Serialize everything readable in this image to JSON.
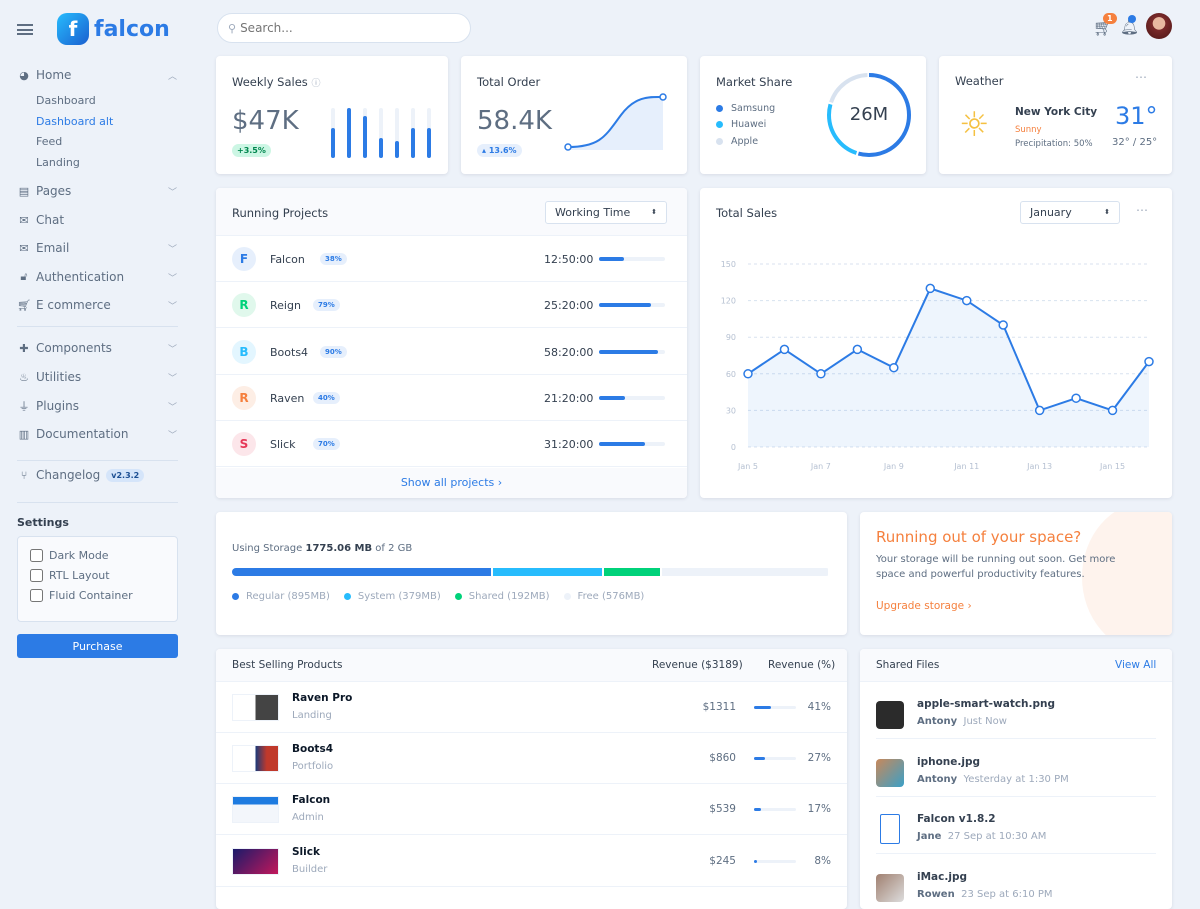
{
  "brand": {
    "name": "falcon"
  },
  "search": {
    "placeholder": "Search..."
  },
  "topbar": {
    "cart_count": "1"
  },
  "sidebar": {
    "home": "Home",
    "home_items": [
      "Dashboard",
      "Dashboard alt",
      "Feed",
      "Landing"
    ],
    "active_sub": "Dashboard alt",
    "items": [
      {
        "label": "Pages",
        "icon": "pages-icon"
      },
      {
        "label": "Chat",
        "icon": "chat-icon"
      },
      {
        "label": "Email",
        "icon": "email-icon"
      },
      {
        "label": "Authentication",
        "icon": "lock-icon"
      },
      {
        "label": "E commerce",
        "icon": "cart-icon"
      },
      {
        "label": "Components",
        "icon": "puzzle-icon"
      },
      {
        "label": "Utilities",
        "icon": "fire-icon"
      },
      {
        "label": "Plugins",
        "icon": "plug-icon"
      },
      {
        "label": "Documentation",
        "icon": "book-icon"
      }
    ],
    "changelog": "Changelog",
    "version": "v2.3.2",
    "settings_title": "Settings",
    "settings": [
      "Dark Mode",
      "RTL Layout",
      "Fluid Container"
    ],
    "purchase": "Purchase"
  },
  "weekly_sales": {
    "title": "Weekly Sales",
    "value": "$47K",
    "change": "+3.5%",
    "bars": [
      60,
      100,
      85,
      40,
      35,
      60,
      60
    ]
  },
  "total_order": {
    "title": "Total Order",
    "value": "58.4K",
    "change": "13.6%"
  },
  "market_share": {
    "title": "Market Share",
    "total": "26M",
    "legend": [
      {
        "name": "Samsung",
        "value": 55,
        "color": "#2c7be5"
      },
      {
        "name": "Huawei",
        "value": 25,
        "color": "#27bcfd"
      },
      {
        "name": "Apple",
        "value": 20,
        "color": "#d8e2ef"
      }
    ]
  },
  "weather": {
    "title": "Weather",
    "city": "New York City",
    "condition": "Sunny",
    "precipitation": "Precipitation: 50%",
    "temp": "31°",
    "range": "32° / 25°"
  },
  "running_projects": {
    "title": "Running Projects",
    "select": "Working Time",
    "footer": "Show all projects ›",
    "rows": [
      {
        "letter": "F",
        "name": "Falcon",
        "pct": "38%",
        "progress": 38,
        "time": "12:50:00",
        "color": "#2c7be5",
        "bg": "#e6effc"
      },
      {
        "letter": "R",
        "name": "Reign",
        "pct": "79%",
        "progress": 79,
        "time": "25:20:00",
        "color": "#00d27a",
        "bg": "#e0f8ec"
      },
      {
        "letter": "B",
        "name": "Boots4",
        "pct": "90%",
        "progress": 90,
        "time": "58:20:00",
        "color": "#27bcfd",
        "bg": "#e3f6ff"
      },
      {
        "letter": "R",
        "name": "Raven",
        "pct": "40%",
        "progress": 40,
        "time": "21:20:00",
        "color": "#f5803e",
        "bg": "#fdeee5"
      },
      {
        "letter": "S",
        "name": "Slick",
        "pct": "70%",
        "progress": 70,
        "time": "31:20:00",
        "color": "#e63757",
        "bg": "#fce6ea"
      }
    ]
  },
  "total_sales": {
    "title": "Total Sales",
    "select": "January"
  },
  "chart_data": {
    "type": "line",
    "title": "Total Sales",
    "x": [
      "Jan 5",
      "Jan 6",
      "Jan 7",
      "Jan 8",
      "Jan 9",
      "Jan 10",
      "Jan 11",
      "Jan 12",
      "Jan 13",
      "Jan 14",
      "Jan 15",
      "Jan 16"
    ],
    "xtick_labels": [
      "Jan 5",
      "Jan 7",
      "Jan 9",
      "Jan 11",
      "Jan 13",
      "Jan 15"
    ],
    "values": [
      60,
      80,
      60,
      80,
      65,
      130,
      120,
      100,
      30,
      40,
      30,
      70
    ],
    "ylim": [
      0,
      150
    ],
    "yticks": [
      0,
      30,
      60,
      90,
      120,
      150
    ],
    "grid": true
  },
  "storage": {
    "prefix": "Using Storage",
    "used": "1775.06 MB",
    "suffix": "of 2 GB",
    "segments": [
      {
        "label": "Regular (895MB)",
        "value": 895,
        "color": "#2c7be5"
      },
      {
        "label": "System (379MB)",
        "value": 379,
        "color": "#27bcfd"
      },
      {
        "label": "Shared (192MB)",
        "value": 192,
        "color": "#00d27a"
      },
      {
        "label": "Free (576MB)",
        "value": 576,
        "color": "#edf2f9"
      }
    ]
  },
  "space": {
    "title": "Running out of your space?",
    "text": "Your storage will be running out soon. Get more space and powerful productivity features.",
    "link": "Upgrade storage ›"
  },
  "best_selling": {
    "title": "Best Selling Products",
    "col1": "Revenue ($3189)",
    "col2": "Revenue (%)",
    "rows": [
      {
        "name": "Raven Pro",
        "cat": "Landing",
        "rev": "$1311",
        "pct": "41%",
        "p": 41
      },
      {
        "name": "Boots4",
        "cat": "Portfolio",
        "rev": "$860",
        "pct": "27%",
        "p": 27
      },
      {
        "name": "Falcon",
        "cat": "Admin",
        "rev": "$539",
        "pct": "17%",
        "p": 17
      },
      {
        "name": "Slick",
        "cat": "Builder",
        "rev": "$245",
        "pct": "8%",
        "p": 8
      }
    ]
  },
  "shared_files": {
    "title": "Shared Files",
    "view_all": "View All",
    "rows": [
      {
        "name": "apple-smart-watch.png",
        "user": "Antony",
        "time": "Just Now"
      },
      {
        "name": "iphone.jpg",
        "user": "Antony",
        "time": "Yesterday at 1:30 PM"
      },
      {
        "name": "Falcon v1.8.2",
        "user": "Jane",
        "time": "27 Sep at 10:30 AM"
      },
      {
        "name": "iMac.jpg",
        "user": "Rowen",
        "time": "23 Sep at 6:10 PM"
      }
    ]
  }
}
